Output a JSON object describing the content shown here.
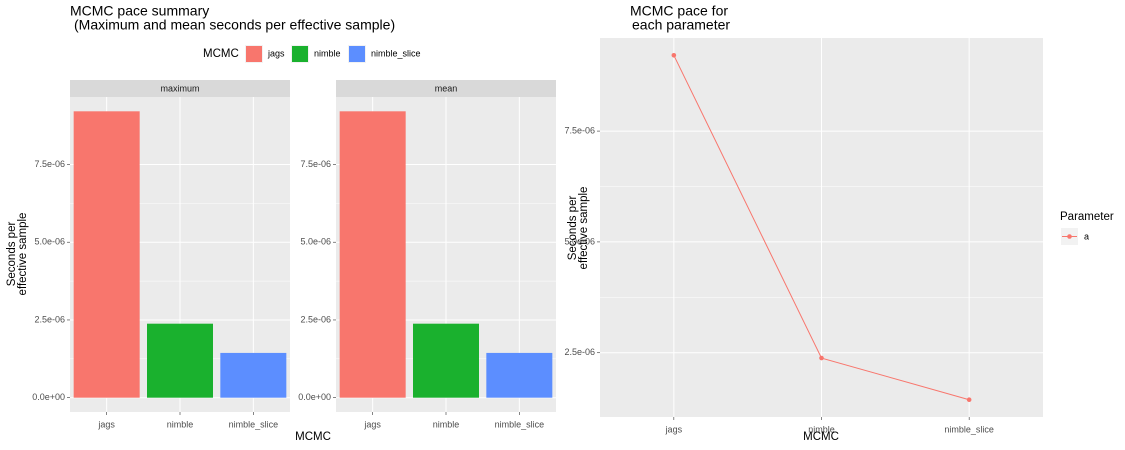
{
  "chart_data": [
    {
      "type": "bar",
      "title": "MCMC pace summary",
      "subtitle": "(Maximum and mean seconds per effective sample)",
      "legend_title": "MCMC",
      "categories": [
        "jags",
        "nimble",
        "nimble_slice"
      ],
      "colors": [
        "#F8766D",
        "#1AB12E",
        "#5C8EFF"
      ],
      "facets": [
        {
          "name": "maximum",
          "values": [
            9.21e-06,
            2.38e-06,
            1.44e-06
          ]
        },
        {
          "name": "mean",
          "values": [
            9.21e-06,
            2.38e-06,
            1.44e-06
          ]
        }
      ],
      "xlabel": "MCMC",
      "ylabel": [
        "Seconds per",
        "effective sample"
      ],
      "ylim": [
        -4.6e-07,
        9.67e-06
      ],
      "yticks": [
        {
          "value": 0,
          "label": "0.0e+00"
        },
        {
          "value": 2.5e-06,
          "label": "2.5e-06"
        },
        {
          "value": 5e-06,
          "label": "5.0e-06"
        },
        {
          "value": 7.5e-06,
          "label": "7.5e-06"
        }
      ],
      "grid": true
    },
    {
      "type": "line",
      "title": [
        "MCMC pace for",
        "each parameter"
      ],
      "categories": [
        "jags",
        "nimble",
        "nimble_slice"
      ],
      "legend_title": "Parameter",
      "series": [
        {
          "name": "a",
          "color": "#F8766D",
          "values": [
            9.21e-06,
            2.38e-06,
            1.44e-06
          ]
        }
      ],
      "xlabel": "MCMC",
      "ylabel": [
        "Seconds per",
        "effective sample"
      ],
      "ylim": [
        1.05e-06,
        9.6e-06
      ],
      "yticks": [
        {
          "value": 2.5e-06,
          "label": "2.5e-06"
        },
        {
          "value": 5e-06,
          "label": "5.0e-06"
        },
        {
          "value": 7.5e-06,
          "label": "7.5e-06"
        }
      ],
      "grid": true
    }
  ]
}
